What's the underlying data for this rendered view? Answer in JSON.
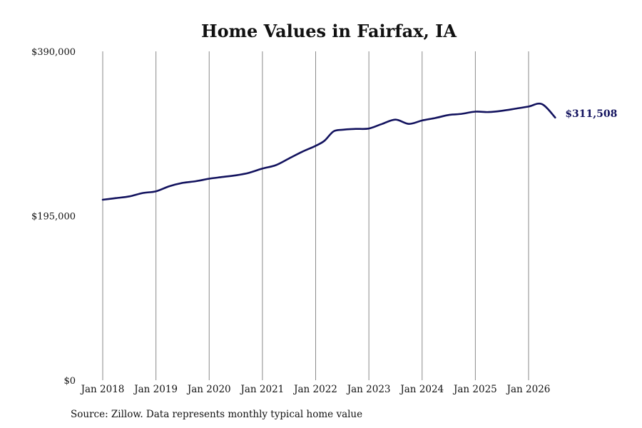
{
  "chart_data": {
    "type": "line",
    "title": "Home Values in Fairfax, IA",
    "xlabel": "",
    "ylabel": "",
    "ylim": [
      0,
      390000
    ],
    "yticks": [
      0,
      195000,
      390000
    ],
    "ytick_labels": [
      "$0",
      "$195,000",
      "$390,000"
    ],
    "xticks": [
      "2018-01",
      "2019-01",
      "2020-01",
      "2021-01",
      "2022-01",
      "2023-01",
      "2024-01",
      "2025-01",
      "2026-01"
    ],
    "xtick_labels": [
      "Jan 2018",
      "Jan 2019",
      "Jan 2020",
      "Jan 2021",
      "Jan 2022",
      "Jan 2023",
      "Jan 2024",
      "Jan 2025",
      "Jan 2026"
    ],
    "grid": "vertical",
    "line_color": "#12125e",
    "end_label": "$311,508",
    "series": [
      {
        "x": [
          "2018-01",
          "2018-04",
          "2018-07",
          "2018-10",
          "2019-01",
          "2019-04",
          "2019-07",
          "2019-10",
          "2020-01",
          "2020-04",
          "2020-07",
          "2020-10",
          "2021-01",
          "2021-04",
          "2021-07",
          "2021-10",
          "2022-01",
          "2022-03",
          "2022-05",
          "2022-07",
          "2022-10",
          "2023-01",
          "2023-04",
          "2023-07",
          "2023-10",
          "2024-01",
          "2024-04",
          "2024-07",
          "2024-10",
          "2025-01",
          "2025-04",
          "2025-07",
          "2025-10",
          "2026-01",
          "2026-04",
          "2026-07"
        ],
        "values": [
          214000,
          216000,
          218000,
          222000,
          224000,
          230000,
          234000,
          236000,
          239000,
          241000,
          243000,
          246000,
          251000,
          255000,
          263000,
          271000,
          278000,
          284000,
          295000,
          297000,
          298000,
          298500,
          304000,
          309000,
          304000,
          308000,
          311000,
          314500,
          316000,
          318500,
          318000,
          319500,
          322000,
          324500,
          327500,
          311508
        ]
      }
    ]
  },
  "source_note": "Source: Zillow. Data represents monthly typical home value"
}
